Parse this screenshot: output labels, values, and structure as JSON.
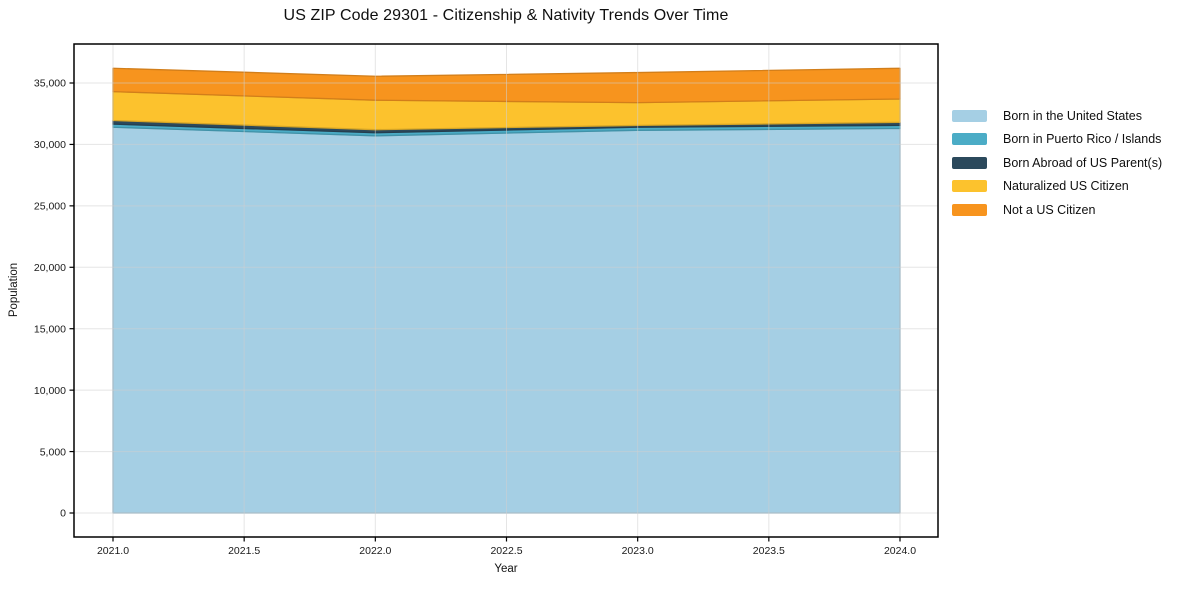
{
  "figure": {
    "background": "#ffffff",
    "spine_color": "#000000",
    "grid_color": "#d0d0d0"
  },
  "chart_data": {
    "type": "area",
    "stacked": true,
    "title": "US ZIP Code 29301 - Citizenship & Nativity Trends Over Time",
    "xlabel": "Year",
    "ylabel": "Population",
    "x": [
      2021,
      2022,
      2023,
      2024
    ],
    "series": [
      {
        "name": "Born in the United States",
        "color": "#a5cfe4",
        "values": [
          31400,
          30700,
          31150,
          31300
        ]
      },
      {
        "name": "Born in Puerto Rico / Islands",
        "color": "#4bacc6",
        "values": [
          250,
          250,
          250,
          250
        ]
      },
      {
        "name": "Born Abroad of US Parent(s)",
        "color": "#2b495c",
        "values": [
          300,
          250,
          150,
          250
        ]
      },
      {
        "name": "Naturalized US Citizen",
        "color": "#fcc22d",
        "values": [
          2350,
          2400,
          1850,
          1900
        ]
      },
      {
        "name": "Not a US Citizen",
        "color": "#f7941e",
        "values": [
          1900,
          1950,
          2450,
          2500
        ]
      }
    ],
    "x_tick_values": [
      2021,
      2021.5,
      2022,
      2022.5,
      2023,
      2023.5,
      2024
    ],
    "x_tick_labels": [
      "2021.0",
      "2021.5",
      "2022.0",
      "2022.5",
      "2023.0",
      "2023.5",
      "2024.0"
    ],
    "y_tick_values": [
      0,
      5000,
      10000,
      15000,
      20000,
      25000,
      30000,
      35000
    ],
    "y_tick_labels": [
      "0",
      "5,000",
      "10,000",
      "15,000",
      "20,000",
      "25,000",
      "30,000",
      "35,000"
    ],
    "xlim": [
      2021,
      2024
    ],
    "ylim": [
      0,
      38200
    ],
    "grid": true,
    "legend_position": "right of plot"
  }
}
